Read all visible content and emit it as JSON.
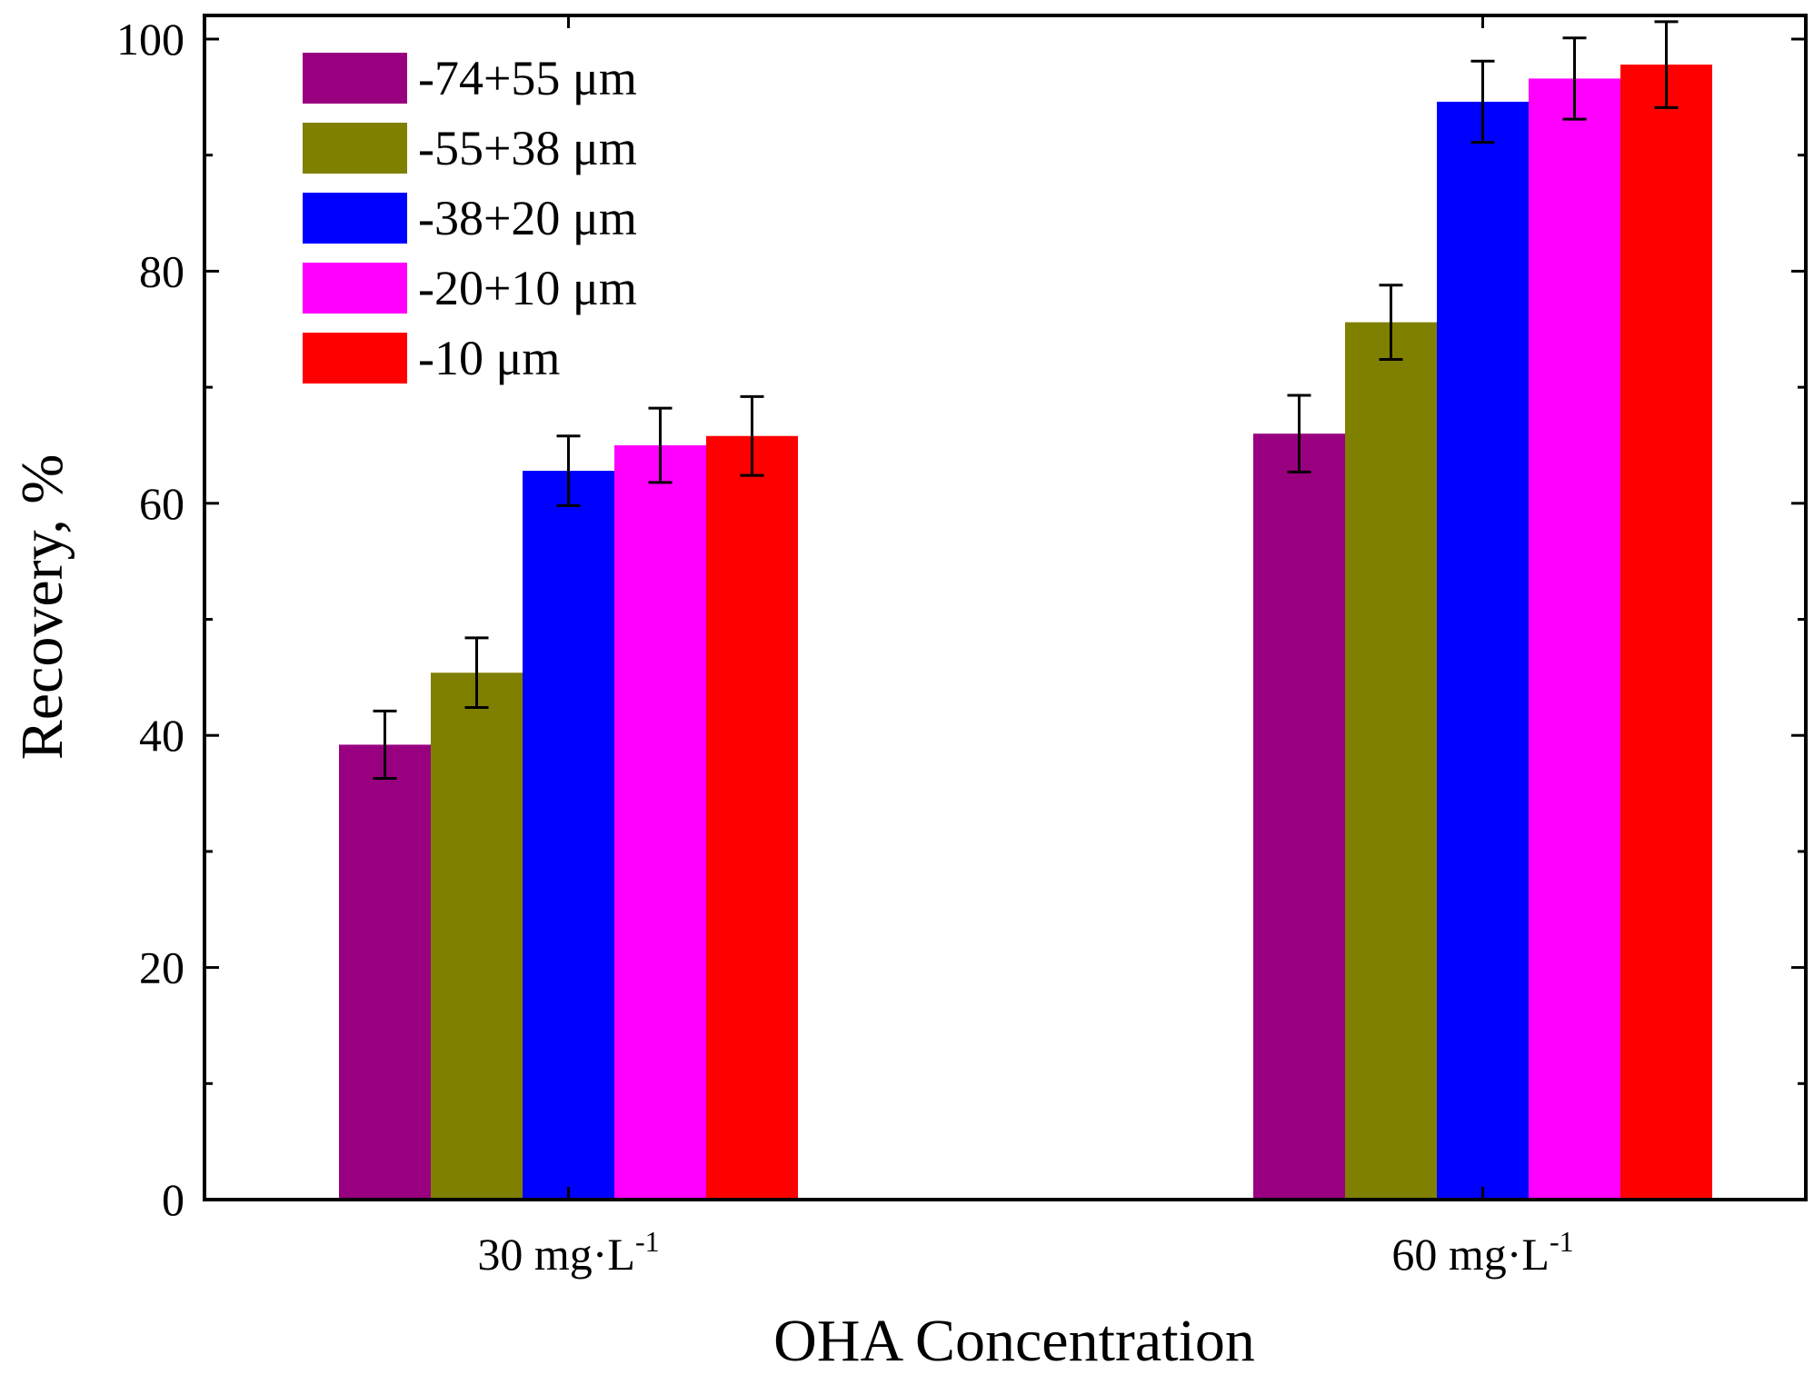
{
  "chart_data": {
    "type": "bar",
    "title": "",
    "xlabel": "OHA Concentration",
    "ylabel": "Recovery, %",
    "ylim": [
      0,
      102
    ],
    "yticks": [
      0,
      20,
      40,
      60,
      80,
      100
    ],
    "ytick_labels": [
      "0",
      "20",
      "40",
      "60",
      "80",
      "100"
    ],
    "categories": [
      {
        "base": "30 mg·L",
        "sup": "-1"
      },
      {
        "base": "60 mg·L",
        "sup": "-1"
      }
    ],
    "series": [
      {
        "name": "-74+55 μm",
        "color": "#990080",
        "values": [
          39.2,
          66.0
        ],
        "errors": [
          2.9,
          3.3
        ]
      },
      {
        "name": "-55+38 μm",
        "color": "#808000",
        "values": [
          45.4,
          75.6
        ],
        "errors": [
          3.0,
          3.2
        ]
      },
      {
        "name": "-38+20 μm",
        "color": "#0000FF",
        "values": [
          62.8,
          94.6
        ],
        "errors": [
          3.0,
          3.5
        ]
      },
      {
        "name": "-20+10 μm",
        "color": "#FF00FF",
        "values": [
          65.0,
          96.6
        ],
        "errors": [
          3.2,
          3.5
        ]
      },
      {
        "name": "-10 μm",
        "color": "#FF0000",
        "values": [
          65.8,
          97.8
        ],
        "errors": [
          3.4,
          3.7
        ]
      }
    ],
    "legend_position": "top-left",
    "grid": false
  }
}
